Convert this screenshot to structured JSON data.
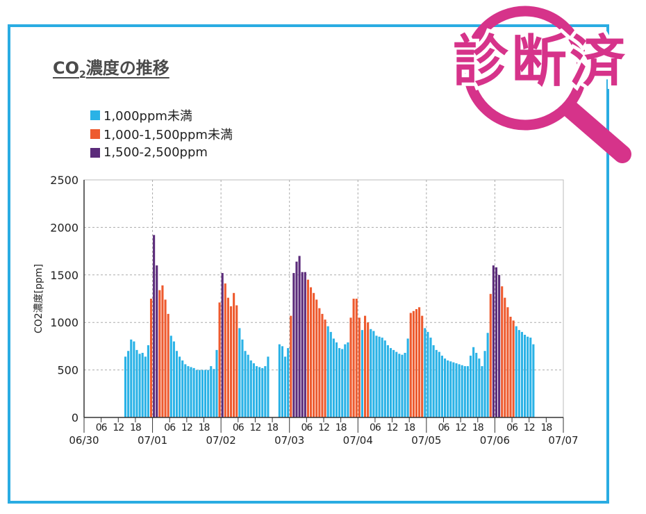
{
  "title": {
    "main": "CO",
    "sub": "2",
    "rest": "濃度の推移"
  },
  "stamp": {
    "text": "診断済",
    "color": "#d6338a"
  },
  "colors": {
    "frame": "#2aace2",
    "low": "#2ab2e6",
    "mid": "#ee5a2e",
    "high": "#5b2b7a"
  },
  "chart_data": {
    "type": "bar",
    "ylabel": "CO2濃度[ppm]",
    "ylim": [
      0,
      2500
    ],
    "yticks": [
      0,
      500,
      1000,
      1500,
      2000,
      2500
    ],
    "grid": true,
    "legend": [
      {
        "label": "1,000ppm未満",
        "category": "low"
      },
      {
        "label": "1,000-1,500ppm未満",
        "category": "mid"
      },
      {
        "label": "1,500-2,500ppm",
        "category": "high"
      }
    ],
    "hour_labels": [
      "06",
      "12",
      "18"
    ],
    "day_labels": [
      "06/30",
      "07/01",
      "07/02",
      "07/03",
      "07/04",
      "07/05",
      "07/06",
      "07/07"
    ],
    "series": [
      {
        "day": "06/30",
        "values": [
          null,
          null,
          null,
          null,
          null,
          null,
          null,
          null,
          null,
          null,
          null,
          null,
          null,
          null,
          null,
          null,
          null,
          null,
          null,
          null,
          null,
          null,
          null,
          null
        ]
      },
      {
        "day": "07/01",
        "values": [
          null,
          null,
          null,
          null,
          null,
          null,
          null,
          null,
          null,
          null,
          null,
          null,
          null,
          null,
          null,
          null,
          null,
          null,
          null,
          null,
          null,
          null,
          null,
          null
        ]
      },
      {
        "day": "07/02",
        "values": [
          null,
          null,
          null,
          null,
          null,
          null,
          null,
          null,
          null,
          null,
          null,
          null,
          null,
          null,
          null,
          null,
          null,
          null,
          null,
          null,
          null,
          null,
          null,
          null
        ]
      },
      {
        "day": "07/03",
        "values": [
          null,
          null,
          null,
          null,
          null,
          null,
          null,
          null,
          null,
          null,
          null,
          null,
          null,
          null,
          null,
          null,
          null,
          null,
          null,
          null,
          null,
          null,
          null,
          null
        ]
      },
      {
        "day": "07/04",
        "values": [
          null,
          null,
          null,
          null,
          null,
          null,
          null,
          null,
          null,
          null,
          null,
          null,
          null,
          null,
          null,
          null,
          null,
          null,
          null,
          null,
          null,
          null,
          null,
          null
        ]
      },
      {
        "day": "07/05",
        "values": [
          null,
          null,
          null,
          null,
          null,
          null,
          null,
          null,
          null,
          null,
          null,
          null,
          null,
          null,
          null,
          null,
          null,
          null,
          null,
          null,
          null,
          null,
          null,
          null
        ]
      },
      {
        "day": "07/06",
        "values": [
          null,
          null,
          null,
          null,
          null,
          null,
          null,
          null,
          null,
          null,
          null,
          null,
          null,
          null,
          null,
          null,
          null,
          null,
          null,
          null,
          null,
          null,
          null,
          null
        ]
      }
    ],
    "hourly": [
      [
        null,
        null,
        null,
        null,
        null,
        null,
        null,
        null,
        null,
        null,
        null,
        640,
        700,
        820,
        800,
        710,
        670,
        680,
        640,
        760,
        1250,
        1920,
        1600,
        1340,
        1390,
        1240,
        1090,
        860,
        800,
        700,
        640,
        600,
        560,
        540,
        530,
        520,
        500,
        500,
        500,
        500,
        500,
        540,
        510,
        710,
        1210,
        1520,
        1410,
        1260,
        1170,
        1310,
        1180,
        940,
        820,
        700,
        660,
        600,
        570,
        540,
        530,
        520,
        540,
        640,
        null,
        null,
        null,
        770,
        750,
        640,
        730,
        1070,
        1520,
        1640,
        1700,
        1530,
        1530,
        1450,
        1370,
        1310,
        1240,
        1150,
        1090,
        1030,
        960,
        900,
        830,
        790,
        730,
        720,
        770,
        790,
        1050,
        1250,
        1250,
        1050,
        920,
        1070,
        1000,
        930,
        910,
        860,
        850,
        840,
        810,
        760,
        730,
        710,
        690,
        670,
        660,
        680,
        830,
        1100,
        1120,
        1140,
        1160,
        1070,
        940,
        900,
        840,
        760,
        710,
        690,
        650,
        620,
        600,
        590,
        580,
        570,
        560,
        550,
        540,
        540,
        650,
        740,
        680,
        620,
        540,
        700,
        890,
        1300,
        1600,
        1580,
        1500,
        1380,
        1260,
        1160,
        1060,
        1020,
        960,
        920,
        900,
        870,
        850,
        840,
        770
      ]
    ],
    "start_hour": 3
  }
}
